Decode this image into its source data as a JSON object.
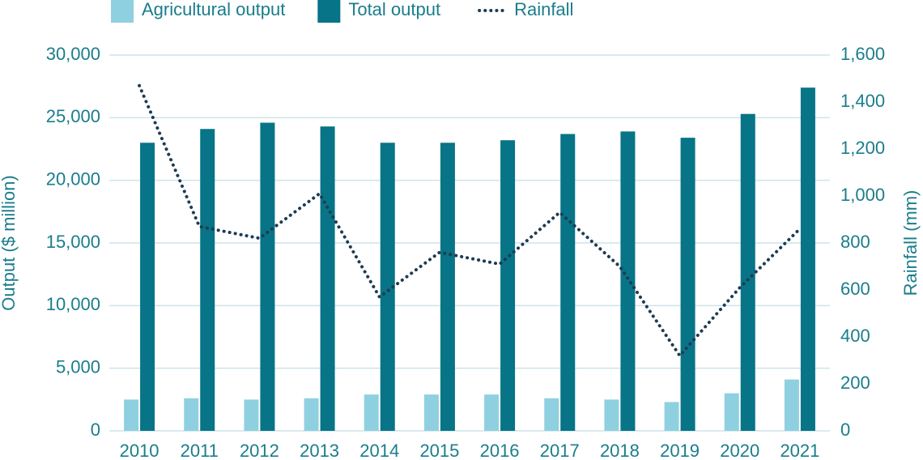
{
  "chart_data": {
    "type": "bar",
    "categories": [
      "2010",
      "2011",
      "2012",
      "2013",
      "2014",
      "2015",
      "2016",
      "2017",
      "2018",
      "2019",
      "2020",
      "2021"
    ],
    "series": [
      {
        "name": "Agricultural output",
        "color": "#8fd0e0",
        "values": [
          2500,
          2600,
          2500,
          2600,
          2900,
          2900,
          2900,
          2600,
          2500,
          2300,
          3000,
          4100
        ]
      },
      {
        "name": "Total output",
        "color": "#077487",
        "values": [
          23000,
          24100,
          24600,
          24300,
          23000,
          23000,
          23200,
          23700,
          23900,
          23400,
          25300,
          27400
        ]
      },
      {
        "name": "Rainfall",
        "color": "#1d3b53",
        "type": "line",
        "line_style": "dotted",
        "axis": "y2",
        "values": [
          1470,
          870,
          820,
          1010,
          570,
          760,
          710,
          930,
          700,
          320,
          610,
          860
        ]
      }
    ],
    "ylabel": "Output ($ million)",
    "y2label": "Rainfall (mm)",
    "ylim": [
      0,
      30000
    ],
    "yticks": [
      0,
      {
        "value": 5000,
        "label": "5,000"
      },
      {
        "value": 10000,
        "label": "10,000"
      },
      {
        "value": 15000,
        "label": "15,000"
      },
      {
        "value": 20000,
        "label": "20,000"
      },
      {
        "value": 25000,
        "label": "25,000"
      },
      {
        "value": 30000,
        "label": "30,000"
      }
    ],
    "y2lim": [
      0,
      1600
    ],
    "y2ticks": [
      0,
      200,
      400,
      600,
      800,
      {
        "value": 1000,
        "label": "1,000"
      },
      {
        "value": 1200,
        "label": "1,200"
      },
      {
        "value": 1400,
        "label": "1,400"
      },
      {
        "value": 1600,
        "label": "1,600"
      }
    ],
    "grid": true,
    "legend": "top"
  }
}
